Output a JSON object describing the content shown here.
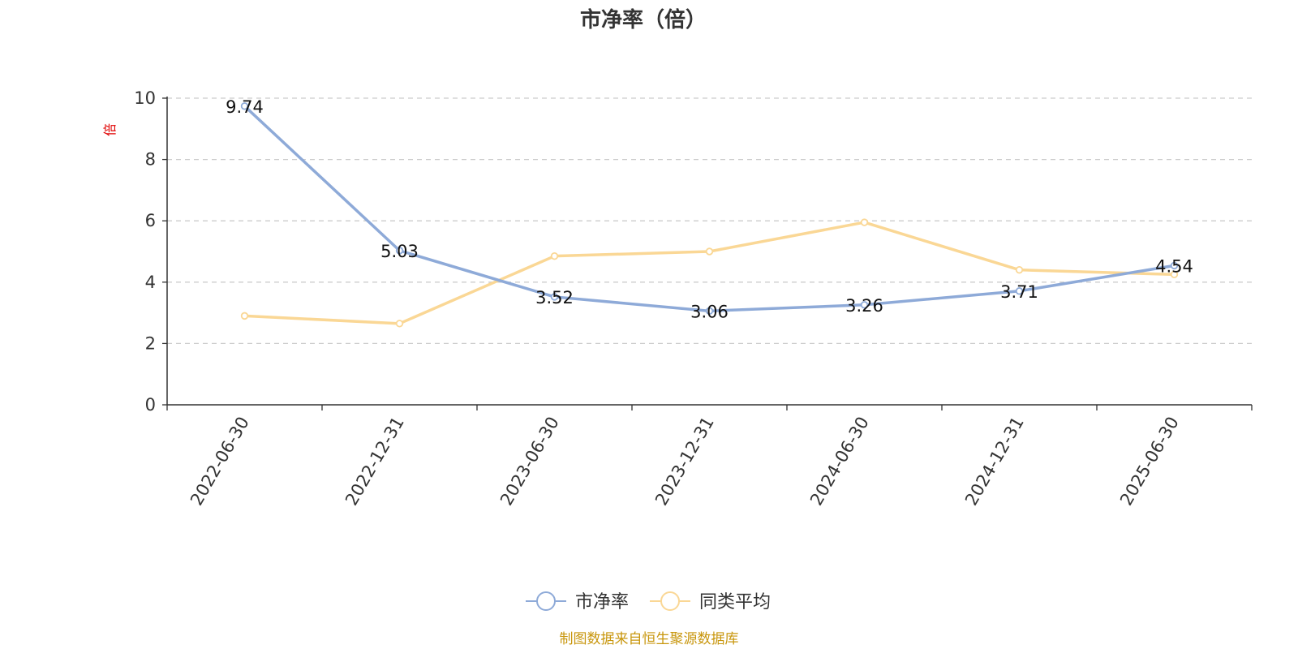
{
  "chart_data": {
    "type": "line",
    "title": "市净率（倍）",
    "ylabel": "倍",
    "xlabel": "",
    "categories": [
      "2022-06-30",
      "2022-12-31",
      "2023-06-30",
      "2023-12-31",
      "2024-06-30",
      "2024-12-31",
      "2025-06-30"
    ],
    "ylim": [
      0,
      10
    ],
    "yticks": [
      0,
      2,
      4,
      6,
      8,
      10
    ],
    "grid": true,
    "legend_position": "bottom-center",
    "series": [
      {
        "name": "市净率",
        "values": [
          9.74,
          5.03,
          3.52,
          3.06,
          3.26,
          3.71,
          4.54
        ],
        "labels": [
          "9.74",
          "5.03",
          "3.52",
          "3.06",
          "3.26",
          "3.71",
          "4.54"
        ],
        "color": "#8eaad8"
      },
      {
        "name": "同类平均",
        "values": [
          2.9,
          2.65,
          4.85,
          5.0,
          5.95,
          4.4,
          4.25
        ],
        "color": "#fad795"
      }
    ],
    "source": "制图数据来自恒生聚源数据库"
  }
}
